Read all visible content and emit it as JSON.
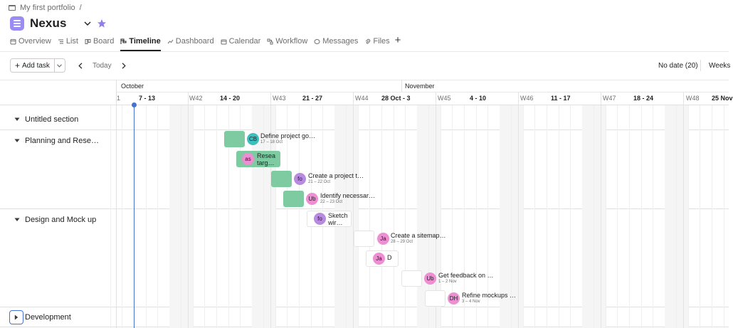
{
  "breadcrumb": {
    "portfolio": "My first portfolio",
    "separator": "/"
  },
  "project": {
    "title": "Nexus",
    "accent": "#9a8cf3"
  },
  "tabs": [
    {
      "label": "Overview",
      "icon": "overview-icon"
    },
    {
      "label": "List",
      "icon": "list-icon"
    },
    {
      "label": "Board",
      "icon": "board-icon"
    },
    {
      "label": "Timeline",
      "icon": "timeline-icon",
      "active": true
    },
    {
      "label": "Dashboard",
      "icon": "dashboard-icon"
    },
    {
      "label": "Calendar",
      "icon": "calendar-icon"
    },
    {
      "label": "Workflow",
      "icon": "workflow-icon"
    },
    {
      "label": "Messages",
      "icon": "messages-icon"
    },
    {
      "label": "Files",
      "icon": "files-icon"
    }
  ],
  "toolbar": {
    "add_task": "Add task",
    "today": "Today",
    "no_date": "No date (20)",
    "zoom": "Weeks"
  },
  "months": [
    "October",
    "November"
  ],
  "weeks": {
    "start_day_label": "1",
    "range_labels": [
      "7 - 13",
      "14 - 20",
      "21 - 27",
      "28 Oct - 3",
      "4 - 10",
      "11 - 17",
      "18 - 24",
      "25 Nov"
    ],
    "number_labels": [
      "W42",
      "W43",
      "W44",
      "W45",
      "W46",
      "W47",
      "W48"
    ]
  },
  "sections": [
    {
      "title": "Untitled section"
    },
    {
      "title": "Planning and Rese…"
    },
    {
      "title": "Design and Mock up"
    },
    {
      "title": "Development"
    }
  ],
  "tasks": [
    {
      "name": "Define project go…",
      "dates": "17 – 18 Oct",
      "assignee": "CB",
      "avatar_color": "#3cbfbf"
    },
    {
      "name": "Resea targ…",
      "dates": "",
      "assignee": "as",
      "avatar_color": "#ee8ed3"
    },
    {
      "name": "Create a project t…",
      "dates": "21 – 22 Oct",
      "assignee": "fo",
      "avatar_color": "#b88ae0"
    },
    {
      "name": "Identify necessar…",
      "dates": "22 – 23 Oct",
      "assignee": "Ub",
      "avatar_color": "#ee8ed3"
    },
    {
      "name": "Sketch wir…",
      "dates": "",
      "assignee": "fo",
      "avatar_color": "#b88ae0"
    },
    {
      "name": "Create a sitemap…",
      "dates": "28 – 29 Oct",
      "assignee": "Ja",
      "avatar_color": "#ee8ed3"
    },
    {
      "name": "D",
      "dates": "",
      "assignee": "Ja",
      "avatar_color": "#ee8ed3"
    },
    {
      "name": "Get feedback on …",
      "dates": "1 – 2 Nov",
      "assignee": "Ub",
      "avatar_color": "#ee8ed3"
    },
    {
      "name": "Refine mockups …",
      "dates": "3 – 4 Nov",
      "assignee": "DH",
      "avatar_color": "#ee8ed3"
    }
  ]
}
